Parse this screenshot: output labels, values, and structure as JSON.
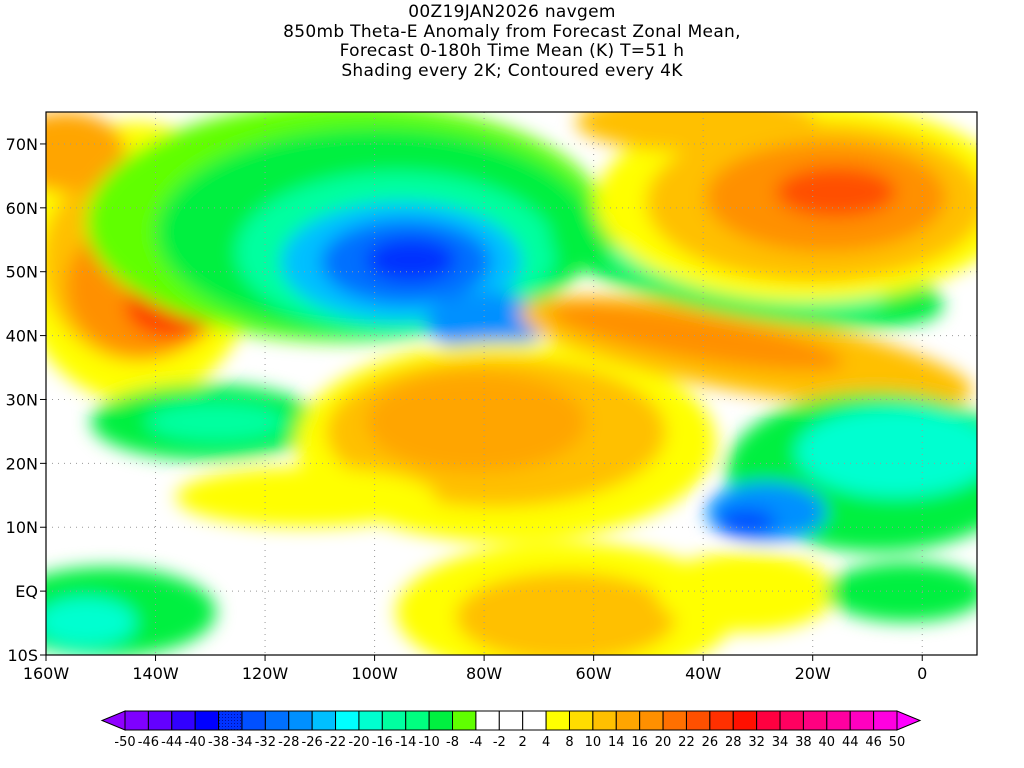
{
  "title": {
    "line1": "00Z19JAN2026 navgem",
    "line2": "850mb Theta-E Anomaly from Forecast Zonal Mean,",
    "line3": "Forecast 0-180h Time Mean (K) T=51 h",
    "line4": "Shading every 2K; Contoured every 4K"
  },
  "axes": {
    "lon_range": [
      -160,
      10
    ],
    "lat_range": [
      -10,
      75
    ],
    "lon_ticks": [
      {
        "value": -160,
        "label": "160W"
      },
      {
        "value": -140,
        "label": "140W"
      },
      {
        "value": -120,
        "label": "120W"
      },
      {
        "value": -100,
        "label": "100W"
      },
      {
        "value": -80,
        "label": "80W"
      },
      {
        "value": -60,
        "label": "60W"
      },
      {
        "value": -40,
        "label": "40W"
      },
      {
        "value": -20,
        "label": "20W"
      },
      {
        "value": 0,
        "label": "0"
      }
    ],
    "lat_ticks": [
      {
        "value": 70,
        "label": "70N"
      },
      {
        "value": 60,
        "label": "60N"
      },
      {
        "value": 50,
        "label": "50N"
      },
      {
        "value": 40,
        "label": "40N"
      },
      {
        "value": 30,
        "label": "30N"
      },
      {
        "value": 20,
        "label": "20N"
      },
      {
        "value": 10,
        "label": "10N"
      },
      {
        "value": 0,
        "label": "EQ"
      },
      {
        "value": -10,
        "label": "10S"
      }
    ]
  },
  "colorbar": {
    "labels": [
      "-50",
      "-46",
      "-44",
      "-40",
      "-38",
      "-34",
      "-32",
      "-28",
      "-26",
      "-22",
      "-20",
      "-16",
      "-14",
      "-10",
      "-8",
      "-4",
      "-2",
      "2",
      "4",
      "8",
      "10",
      "14",
      "16",
      "20",
      "22",
      "26",
      "28",
      "32",
      "34",
      "38",
      "40",
      "44",
      "46",
      "50"
    ],
    "low_arrow_color": "#9000ff",
    "high_arrow_color": "#ff00ff",
    "colors": [
      "#7f00ff",
      "#6400ff",
      "#3200ff",
      "#0000ff",
      "#0030ff",
      "#0050ff",
      "#0070ff",
      "#0090ff",
      "#00c0ff",
      "#00ffff",
      "#00ffd0",
      "#00ffa0",
      "#00ff80",
      "#00f040",
      "#60ff00",
      "#ffffff",
      "#ffffff",
      "#ffffff",
      "#ffff00",
      "#ffdd00",
      "#ffc000",
      "#ffa500",
      "#ff9000",
      "#ff7000",
      "#ff5000",
      "#ff3000",
      "#ff1000",
      "#ff0040",
      "#ff0060",
      "#ff0080",
      "#ff00a0",
      "#ff00c0",
      "#ff00e0"
    ]
  }
}
